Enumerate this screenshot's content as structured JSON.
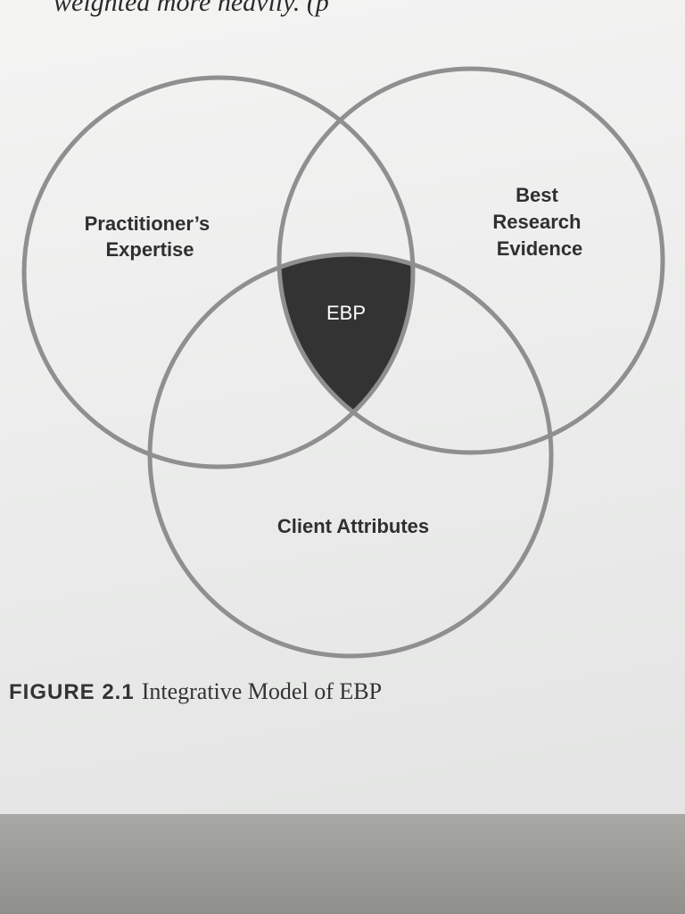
{
  "page": {
    "top_text": "weighted more heavily. (p"
  },
  "diagram": {
    "circles": {
      "practitioner": [
        "Practitioner’s",
        "Expertise"
      ],
      "research": [
        "Best",
        "Research",
        "Evidence"
      ],
      "client": [
        "Client Attributes"
      ]
    },
    "center_label": "EBP",
    "center_color": "#333333",
    "stroke_color": "#8f8f8f"
  },
  "caption": {
    "number": "FIGURE 2.1",
    "title": "Integrative Model of EBP"
  }
}
